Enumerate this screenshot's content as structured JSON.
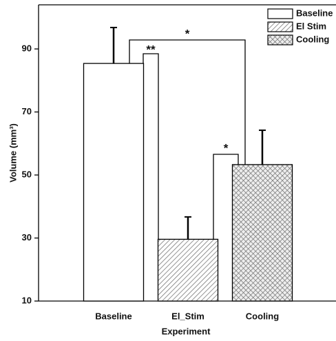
{
  "chart_data": {
    "type": "bar",
    "x_label": "Experiment",
    "y_label": "Volume (mm³)",
    "categories": [
      "Baseline",
      "El_Stim",
      "Cooling"
    ],
    "values": [
      85.4,
      29.6,
      53.3
    ],
    "errors": [
      11.4,
      7.1,
      10.9
    ],
    "legend": [
      "Baseline",
      "El Stim",
      "Cooling"
    ],
    "annotations": [
      "*",
      "**",
      "*"
    ],
    "ylim": [
      10,
      104
    ],
    "yticks": [
      10,
      30,
      50,
      70,
      90
    ]
  }
}
